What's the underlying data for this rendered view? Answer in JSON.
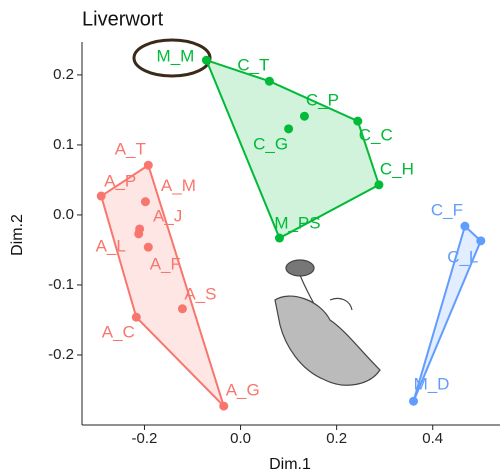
{
  "chart_data": {
    "type": "scatter-hull",
    "title": "Liverwort",
    "x_label": "Dim.1",
    "y_label": "Dim.2",
    "xlim": [
      -0.33,
      0.54
    ],
    "ylim": [
      -0.3,
      0.247
    ],
    "xticks": [
      -0.2,
      {
        "value": 0,
        "label": "0.0"
      },
      0.2,
      0.4
    ],
    "yticks": [
      -0.2,
      -0.1,
      {
        "value": 0,
        "label": "0.0"
      },
      0.1,
      0.2
    ],
    "series": [
      {
        "color": "#F8766D",
        "labels": [
          "A_T",
          "A_P",
          "A_M",
          "A_J",
          "A_L",
          "A_F",
          "A_S",
          "A_C",
          "A_G"
        ],
        "x": [
          -0.192,
          -0.29,
          -0.198,
          -0.21,
          -0.212,
          -0.192,
          -0.121,
          -0.217,
          -0.035
        ],
        "values": [
          0.071,
          0.027,
          0.019,
          -0.02,
          -0.027,
          -0.046,
          -0.134,
          -0.146,
          -0.273
        ]
      },
      {
        "color": "#00BA38",
        "labels": [
          "M_M",
          "C_T",
          "C_P",
          "C_C",
          "C_G",
          "C_H",
          "M_PS"
        ],
        "x": [
          -0.071,
          0.06,
          0.133,
          0.244,
          0.1,
          0.288,
          0.081
        ],
        "values": [
          0.221,
          0.191,
          0.141,
          0.134,
          0.123,
          0.043,
          -0.033
        ]
      },
      {
        "color": "#619CFF",
        "labels": [
          "C_F",
          "C_L",
          "M_D"
        ],
        "x": [
          0.467,
          0.5,
          0.36
        ],
        "values": [
          -0.016,
          -0.037,
          -0.266
        ]
      }
    ]
  }
}
